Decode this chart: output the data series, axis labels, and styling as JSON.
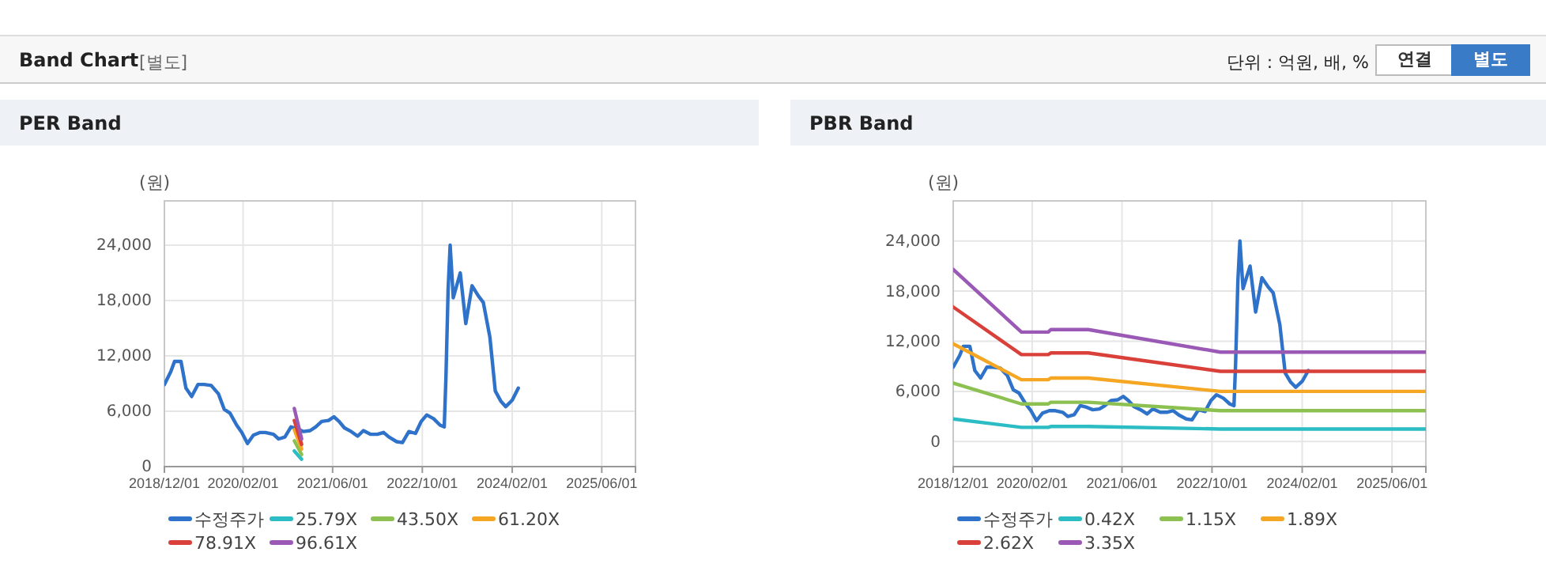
{
  "chart_data": [
    {
      "type": "line",
      "title": "PER Band",
      "ylabel": "(원)",
      "annotations": [
        "Band Chart",
        "[별도]",
        "단위 : 억원, 배, %",
        "연결",
        "별도"
      ],
      "xlim": [
        "2018-12-01",
        "2025-12-01"
      ],
      "xticks": [
        {
          "value": "2018-12-01",
          "label": "2018/12/01"
        },
        {
          "value": "2020-02-01",
          "label": "2020/02/01"
        },
        {
          "value": "2021-06-01",
          "label": "2021/06/01"
        },
        {
          "value": "2022-10-01",
          "label": "2022/10/01"
        },
        {
          "value": "2024-02-01",
          "label": "2024/02/01"
        },
        {
          "value": "2025-06-01",
          "label": "2025/06/01"
        }
      ],
      "ylim": [
        0,
        28800
      ],
      "yticks": [
        0,
        {
          "value": 6000,
          "label": "6,000"
        },
        {
          "value": 12000,
          "label": "12,000"
        },
        {
          "value": 18000,
          "label": "18,000"
        },
        {
          "value": 24000,
          "label": "24,000"
        }
      ],
      "grid": true,
      "legend": "bottom",
      "marker": "none",
      "line_style": "solid",
      "series": [
        {
          "name": "수정주가",
          "color": "#2f72c9",
          "x": [
            "2018-12-01",
            "2019-01-05",
            "2019-01-25",
            "2019-03-01",
            "2019-03-28",
            "2019-04-28",
            "2019-06-01",
            "2019-07-05",
            "2019-08-12",
            "2019-09-20",
            "2019-10-22",
            "2019-11-22",
            "2019-12-28",
            "2020-01-25",
            "2020-02-25",
            "2020-03-28",
            "2020-05-04",
            "2020-06-01",
            "2020-07-15",
            "2020-08-12",
            "2020-09-15",
            "2020-10-18",
            "2020-11-22",
            "2020-12-25",
            "2021-01-30",
            "2021-03-01",
            "2021-04-03",
            "2021-05-10",
            "2021-06-08",
            "2021-07-06",
            "2021-08-04",
            "2021-09-10",
            "2021-10-15",
            "2021-11-15",
            "2021-12-25",
            "2022-01-30",
            "2022-03-05",
            "2022-04-03",
            "2022-05-15",
            "2022-06-15",
            "2022-07-20",
            "2022-08-25",
            "2022-09-25",
            "2022-10-25",
            "2022-12-01",
            "2023-01-05",
            "2023-01-28",
            "2023-02-06",
            "2023-02-18",
            "2023-03-01",
            "2023-03-18",
            "2023-04-25",
            "2023-05-25",
            "2023-06-28",
            "2023-08-01",
            "2023-08-28",
            "2023-10-03",
            "2023-11-01",
            "2023-12-01",
            "2023-12-28",
            "2024-02-01",
            "2024-03-05"
          ],
          "values": [
            8900,
            10300,
            11400,
            11400,
            8500,
            7600,
            8900,
            8900,
            8800,
            7900,
            6200,
            5800,
            4500,
            3700,
            2500,
            3400,
            3700,
            3700,
            3500,
            3000,
            3200,
            4300,
            4100,
            3800,
            3900,
            4300,
            4900,
            5000,
            5400,
            4900,
            4200,
            3800,
            3300,
            3900,
            3500,
            3500,
            3700,
            3200,
            2700,
            2600,
            3800,
            3600,
            4900,
            5600,
            5200,
            4500,
            4300,
            9500,
            19200,
            24000,
            18300,
            21000,
            15500,
            19600,
            18500,
            17800,
            14000,
            8200,
            7100,
            6500,
            7200,
            8500
          ]
        },
        {
          "name": "25.79X",
          "color": "#2bbcc4",
          "x": [
            "2020-11-05",
            "2020-12-15"
          ],
          "values": [
            1700,
            800
          ]
        },
        {
          "name": "43.50X",
          "color": "#8cc152",
          "x": [
            "2020-11-05",
            "2020-12-15"
          ],
          "values": [
            2800,
            1300
          ]
        },
        {
          "name": "61.20X",
          "color": "#f5a623",
          "x": [
            "2020-11-05",
            "2020-12-15"
          ],
          "values": [
            4000,
            1900
          ]
        },
        {
          "name": "78.91X",
          "color": "#d9403a",
          "x": [
            "2020-11-05",
            "2020-12-15"
          ],
          "values": [
            5000,
            2400
          ]
        },
        {
          "name": "96.61X",
          "color": "#9b59b6",
          "x": [
            "2020-11-05",
            "2020-12-15"
          ],
          "values": [
            6300,
            3000
          ]
        }
      ]
    },
    {
      "type": "line",
      "title": "PBR Band",
      "ylabel": "(원)",
      "xlim": [
        "2018-12-01",
        "2025-12-01"
      ],
      "xticks": [
        {
          "value": "2018-12-01",
          "label": "2018/12/01"
        },
        {
          "value": "2020-02-01",
          "label": "2020/02/01"
        },
        {
          "value": "2021-06-01",
          "label": "2021/06/01"
        },
        {
          "value": "2022-10-01",
          "label": "2022/10/01"
        },
        {
          "value": "2024-02-01",
          "label": "2024/02/01"
        },
        {
          "value": "2025-06-01",
          "label": "2025/06/01"
        }
      ],
      "ylim": [
        -3000,
        28800
      ],
      "yticks": [
        0,
        {
          "value": 6000,
          "label": "6,000"
        },
        {
          "value": 12000,
          "label": "12,000"
        },
        {
          "value": 18000,
          "label": "18,000"
        },
        {
          "value": 24000,
          "label": "24,000"
        }
      ],
      "grid": true,
      "legend": "bottom",
      "marker": "none",
      "line_style": "solid",
      "series": [
        {
          "name": "수정주가",
          "color": "#2f72c9",
          "x": [
            "2018-12-01",
            "2019-01-05",
            "2019-01-25",
            "2019-03-01",
            "2019-03-28",
            "2019-04-28",
            "2019-06-01",
            "2019-07-05",
            "2019-08-12",
            "2019-09-20",
            "2019-10-22",
            "2019-11-22",
            "2019-12-28",
            "2020-01-25",
            "2020-02-25",
            "2020-03-28",
            "2020-05-04",
            "2020-06-01",
            "2020-07-15",
            "2020-08-12",
            "2020-09-15",
            "2020-10-18",
            "2020-11-22",
            "2020-12-25",
            "2021-01-30",
            "2021-03-01",
            "2021-04-03",
            "2021-05-10",
            "2021-06-08",
            "2021-07-06",
            "2021-08-04",
            "2021-09-10",
            "2021-10-15",
            "2021-11-15",
            "2021-12-25",
            "2022-01-30",
            "2022-03-05",
            "2022-04-03",
            "2022-05-15",
            "2022-06-15",
            "2022-07-20",
            "2022-08-25",
            "2022-09-25",
            "2022-10-25",
            "2022-12-01",
            "2023-01-05",
            "2023-01-28",
            "2023-02-06",
            "2023-02-18",
            "2023-03-01",
            "2023-03-18",
            "2023-04-25",
            "2023-05-25",
            "2023-06-28",
            "2023-08-01",
            "2023-08-28",
            "2023-10-03",
            "2023-11-01",
            "2023-12-01",
            "2023-12-28",
            "2024-02-01",
            "2024-03-05"
          ],
          "values": [
            8900,
            10300,
            11400,
            11400,
            8500,
            7600,
            8900,
            8900,
            8800,
            7900,
            6200,
            5800,
            4500,
            3700,
            2500,
            3400,
            3700,
            3700,
            3500,
            3000,
            3200,
            4300,
            4100,
            3800,
            3900,
            4300,
            4900,
            5000,
            5400,
            4900,
            4200,
            3800,
            3300,
            3900,
            3500,
            3500,
            3700,
            3200,
            2700,
            2600,
            3800,
            3600,
            4900,
            5600,
            5200,
            4500,
            4300,
            9500,
            19200,
            24000,
            18300,
            21000,
            15500,
            19600,
            18500,
            17800,
            14000,
            8200,
            7100,
            6500,
            7200,
            8500
          ]
        },
        {
          "name": "0.42X",
          "color": "#2bbcc4",
          "x": [
            "2018-12-01",
            "2019-12-05",
            "2020-04-28",
            "2020-05-12",
            "2020-12-01",
            "2022-11-15",
            "2025-12-01"
          ],
          "values": [
            2700,
            1700,
            1700,
            1800,
            1800,
            1500,
            1500
          ]
        },
        {
          "name": "1.15X",
          "color": "#8cc152",
          "x": [
            "2018-12-01",
            "2019-12-05",
            "2020-04-28",
            "2020-05-12",
            "2020-12-01",
            "2022-11-15",
            "2025-12-01"
          ],
          "values": [
            7000,
            4500,
            4500,
            4700,
            4700,
            3700,
            3700
          ]
        },
        {
          "name": "1.89X",
          "color": "#f5a623",
          "x": [
            "2018-12-01",
            "2019-12-05",
            "2020-04-28",
            "2020-05-12",
            "2020-12-01",
            "2022-11-15",
            "2025-12-01"
          ],
          "values": [
            11700,
            7400,
            7400,
            7600,
            7600,
            6000,
            6000
          ]
        },
        {
          "name": "2.62X",
          "color": "#d9403a",
          "x": [
            "2018-12-01",
            "2019-12-05",
            "2020-04-28",
            "2020-05-12",
            "2020-12-01",
            "2022-11-15",
            "2025-12-01"
          ],
          "values": [
            16100,
            10400,
            10400,
            10600,
            10600,
            8400,
            8400
          ]
        },
        {
          "name": "3.35X",
          "color": "#9b59b6",
          "x": [
            "2018-12-01",
            "2019-12-05",
            "2020-04-28",
            "2020-05-12",
            "2020-12-01",
            "2022-11-15",
            "2025-12-01"
          ],
          "values": [
            20600,
            13100,
            13100,
            13400,
            13400,
            10700,
            10700
          ]
        }
      ]
    }
  ]
}
